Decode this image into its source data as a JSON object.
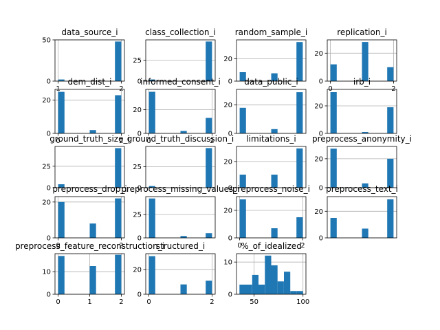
{
  "figure": {
    "bar_color": "#1f77b4",
    "grid_color": "#b0b0b0",
    "axis_color": "#000000"
  },
  "chart_data": [
    {
      "type": "bar",
      "title": "data_source_i",
      "bins": [
        [
          1,
          1.1,
          2
        ],
        [
          1.9,
          2,
          48
        ]
      ],
      "xlim": [
        0.95,
        2.05
      ],
      "ylim": [
        0,
        50
      ],
      "xticks": [
        1,
        2
      ],
      "yticks": [
        0,
        50
      ],
      "grid": true
    },
    {
      "type": "bar",
      "title": "class_collection_i",
      "bins": [
        [
          0,
          0.2,
          2
        ],
        [
          1.8,
          2,
          47
        ]
      ],
      "xlim": [
        -0.1,
        2.1
      ],
      "ylim": [
        0,
        49
      ],
      "xticks": [],
      "yticks": [
        0,
        25
      ],
      "grid": true
    },
    {
      "type": "bar",
      "title": "random_sample_i",
      "bins": [
        [
          0,
          0.2,
          8
        ],
        [
          1.0,
          1.2,
          7
        ],
        [
          1.8,
          2,
          35
        ]
      ],
      "xlim": [
        -0.1,
        2.1
      ],
      "ylim": [
        0,
        37
      ],
      "xticks": [],
      "yticks": [
        0,
        20
      ],
      "grid": true
    },
    {
      "type": "bar",
      "title": "replication_i",
      "bins": [
        [
          0,
          0.2,
          12
        ],
        [
          1.0,
          1.2,
          28
        ],
        [
          1.8,
          2,
          10
        ]
      ],
      "xlim": [
        -0.1,
        2.1
      ],
      "ylim": [
        0,
        29.5
      ],
      "xticks": [
        0,
        2
      ],
      "yticks": [
        0,
        20
      ],
      "grid": true
    },
    {
      "type": "bar",
      "title": "dem_dist_i",
      "bins": [
        [
          0,
          0.2,
          25
        ],
        [
          1.0,
          1.2,
          2
        ],
        [
          1.8,
          2,
          23
        ]
      ],
      "xlim": [
        -0.1,
        2.1
      ],
      "ylim": [
        0,
        26.5
      ],
      "xticks": [
        0,
        2
      ],
      "yticks": [
        0,
        20
      ],
      "grid": true
    },
    {
      "type": "bar",
      "title": "informed_consent_i",
      "bins": [
        [
          0,
          0.2,
          35
        ],
        [
          1.0,
          1.2,
          2
        ],
        [
          1.8,
          2,
          13
        ]
      ],
      "xlim": [
        -0.1,
        2.1
      ],
      "ylim": [
        0,
        37
      ],
      "xticks": [
        0,
        2
      ],
      "yticks": [
        0,
        20
      ],
      "grid": true
    },
    {
      "type": "bar",
      "title": "data_public_i",
      "bins": [
        [
          0,
          0.2,
          18
        ],
        [
          1.0,
          1.2,
          3
        ],
        [
          1.8,
          2,
          29
        ]
      ],
      "xlim": [
        -0.1,
        2.1
      ],
      "ylim": [
        0,
        31
      ],
      "xticks": [],
      "yticks": [
        0,
        20
      ],
      "grid": true
    },
    {
      "type": "bar",
      "title": "irb_i",
      "bins": [
        [
          0,
          0.2,
          30
        ],
        [
          1.0,
          1.2,
          1
        ],
        [
          1.8,
          2,
          19
        ]
      ],
      "xlim": [
        -0.1,
        2.1
      ],
      "ylim": [
        0,
        32
      ],
      "xticks": [],
      "yticks": [
        0,
        20
      ],
      "grid": true
    },
    {
      "type": "bar",
      "title": "ground_truth_size_i",
      "bins": [
        [
          1,
          1.1,
          4
        ],
        [
          1.9,
          2,
          46
        ]
      ],
      "xlim": [
        0.95,
        2.05
      ],
      "ylim": [
        0,
        48
      ],
      "xticks": [],
      "yticks": [
        0,
        25
      ],
      "grid": true
    },
    {
      "type": "bar",
      "title": "ground_truth_discussion_i",
      "bins": [
        [
          0,
          0.2,
          2
        ],
        [
          1.8,
          2,
          47
        ]
      ],
      "xlim": [
        -0.1,
        2.1
      ],
      "ylim": [
        0,
        49
      ],
      "xticks": [],
      "yticks": [
        0,
        25
      ],
      "grid": true
    },
    {
      "type": "bar",
      "title": "limitations_i",
      "bins": [
        [
          0,
          0.2,
          10
        ],
        [
          1.0,
          1.2,
          10
        ],
        [
          1.8,
          2,
          30
        ]
      ],
      "xlim": [
        -0.1,
        2.1
      ],
      "ylim": [
        0,
        31.5
      ],
      "xticks": [],
      "yticks": [
        0,
        20
      ],
      "grid": true
    },
    {
      "type": "bar",
      "title": "preprocess_anonymity_i",
      "bins": [
        [
          0,
          0.2,
          27
        ],
        [
          1.0,
          1.2,
          3
        ],
        [
          1.8,
          2,
          20
        ]
      ],
      "xlim": [
        -0.1,
        2.1
      ],
      "ylim": [
        0,
        28.5
      ],
      "xticks": [],
      "yticks": [
        0,
        20
      ],
      "grid": true
    },
    {
      "type": "bar",
      "title": "preprocess_drop_i",
      "bins": [
        [
          0,
          0.2,
          20
        ],
        [
          1.0,
          1.2,
          8
        ],
        [
          1.8,
          2,
          22
        ]
      ],
      "xlim": [
        -0.1,
        2.1
      ],
      "ylim": [
        0,
        23
      ],
      "xticks": [
        0,
        2
      ],
      "yticks": [
        0,
        20
      ],
      "grid": true
    },
    {
      "type": "bar",
      "title": "preprocess_missing_values_i",
      "bins": [
        [
          0,
          0.2,
          42
        ],
        [
          1.0,
          1.2,
          2
        ],
        [
          1.8,
          2,
          5
        ]
      ],
      "xlim": [
        -0.1,
        2.1
      ],
      "ylim": [
        0,
        44
      ],
      "xticks": [],
      "yticks": [
        0,
        25
      ],
      "grid": true
    },
    {
      "type": "bar",
      "title": "preprocess_noise_i",
      "bins": [
        [
          0,
          0.2,
          28
        ],
        [
          1.0,
          1.2,
          7
        ],
        [
          1.8,
          2,
          15
        ]
      ],
      "xlim": [
        -0.1,
        2.1
      ],
      "ylim": [
        0,
        30
      ],
      "xticks": [
        0,
        2
      ],
      "yticks": [
        0,
        20
      ],
      "grid": true
    },
    {
      "type": "bar",
      "title": "preprocess_text_i",
      "bins": [
        [
          0,
          0.2,
          15
        ],
        [
          1.0,
          1.2,
          7
        ],
        [
          1.8,
          2,
          29
        ]
      ],
      "xlim": [
        -0.1,
        2.1
      ],
      "ylim": [
        0,
        31
      ],
      "xticks": [],
      "yticks": [
        0,
        20
      ],
      "grid": true
    },
    {
      "type": "bar",
      "title": "preprocess_feature_reconstruction_i",
      "bins": [
        [
          0,
          0.2,
          17
        ],
        [
          1.0,
          1.2,
          12.5
        ],
        [
          1.8,
          2,
          17.5
        ]
      ],
      "xlim": [
        -0.1,
        2.1
      ],
      "ylim": [
        0,
        18
      ],
      "xticks": [
        0,
        1,
        2
      ],
      "yticks": [
        0,
        10
      ],
      "grid": true
    },
    {
      "type": "bar",
      "title": "structured_i",
      "bins": [
        [
          0,
          0.2,
          31
        ],
        [
          1.0,
          1.2,
          8
        ],
        [
          1.8,
          2,
          11
        ]
      ],
      "xlim": [
        -0.1,
        2.1
      ],
      "ylim": [
        0,
        33
      ],
      "xticks": [
        0,
        2
      ],
      "yticks": [
        0,
        20
      ],
      "grid": true
    },
    {
      "type": "bar",
      "title": "%_of_idealized",
      "bins": [
        [
          35,
          41.5,
          3
        ],
        [
          41.5,
          48,
          3
        ],
        [
          48,
          54.5,
          6
        ],
        [
          54.5,
          61,
          3
        ],
        [
          61,
          67.5,
          12
        ],
        [
          67.5,
          74,
          9
        ],
        [
          74,
          80.5,
          4
        ],
        [
          80.5,
          87,
          7
        ],
        [
          87,
          93.5,
          1
        ],
        [
          93.5,
          100,
          1
        ]
      ],
      "xlim": [
        32,
        103
      ],
      "ylim": [
        0,
        12.6
      ],
      "xticks": [
        50,
        100
      ],
      "yticks": [
        0,
        10
      ],
      "grid": true
    }
  ]
}
